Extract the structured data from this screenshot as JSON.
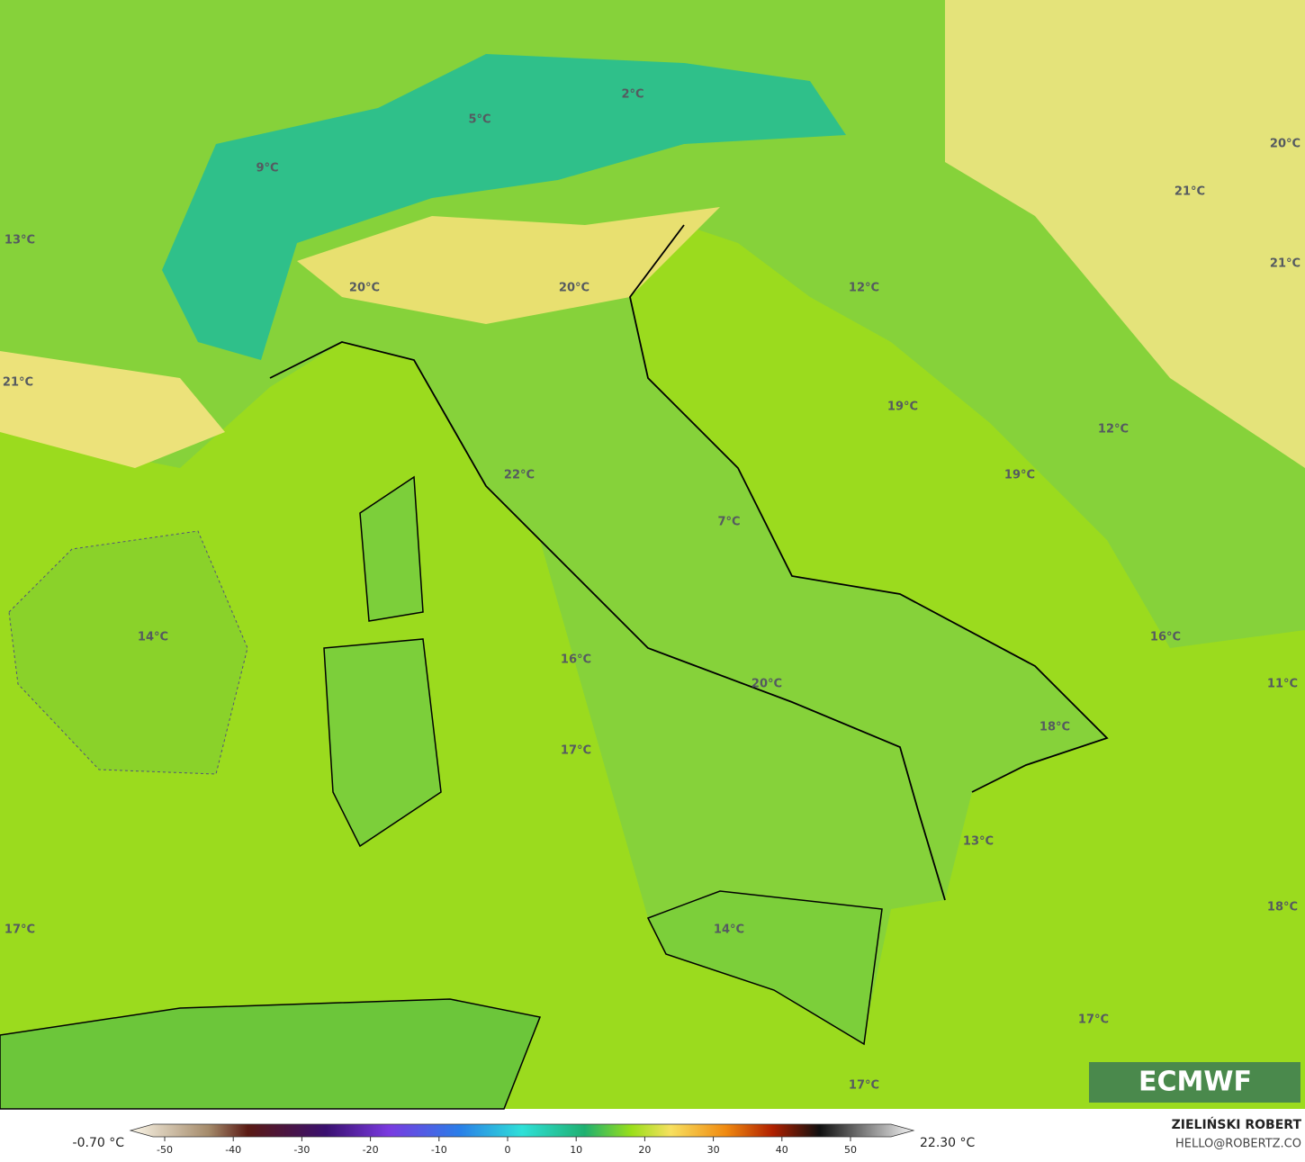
{
  "map": {
    "labels": [
      "2°C",
      "5°C",
      "9°C",
      "13°C",
      "20°C",
      "20°C",
      "12°C",
      "21°C",
      "19°C",
      "12°C",
      "19°C",
      "22°C",
      "7°C",
      "14°C",
      "16°C",
      "16°C",
      "20°C",
      "11°C",
      "18°C",
      "17°C",
      "13°C",
      "17°C",
      "18°C",
      "14°C",
      "17°C",
      "17°C",
      "20°C",
      "21°C",
      "21°C"
    ],
    "logo": "ECMWF"
  },
  "colorbar": {
    "min_label": "-0.70 °C",
    "max_label": "22.30 °C",
    "ticks": [
      -50,
      -40,
      -30,
      -20,
      -10,
      0,
      10,
      20,
      30,
      40,
      50
    ]
  },
  "credits": {
    "author": "ZIELIŃSKI ROBERT",
    "contact": "HELLO@ROBERTZ.CO"
  }
}
